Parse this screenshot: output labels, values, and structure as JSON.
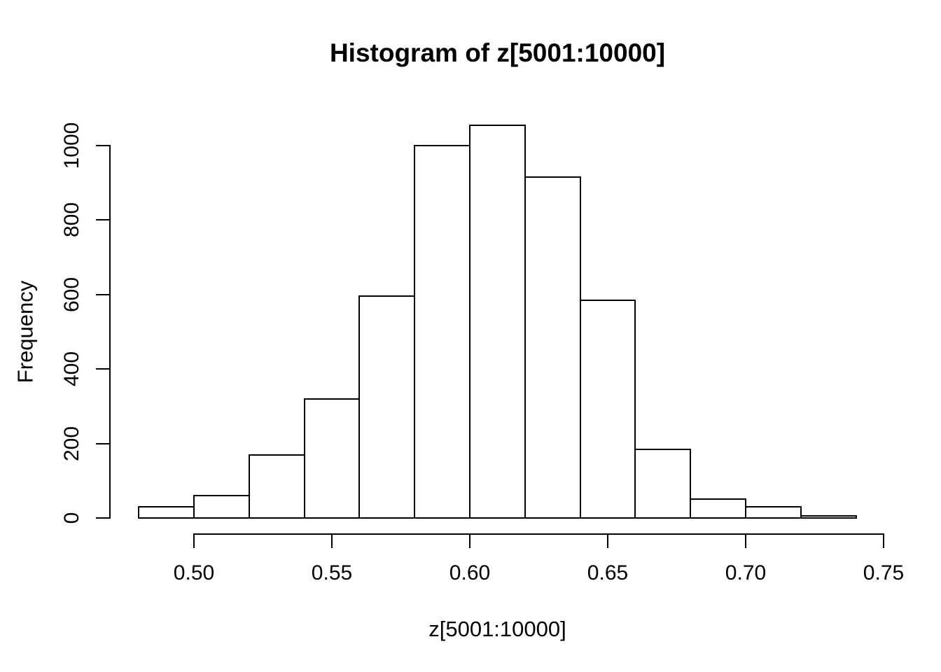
{
  "figure": {
    "background": "#ffffff",
    "foreground": "#000000"
  },
  "chart_data": {
    "type": "histogram",
    "title": "Histogram of z[5001:10000]",
    "xlabel": "z[5001:10000]",
    "ylabel": "Frequency",
    "bin_start": 0.48,
    "bin_width": 0.02,
    "bin_edges": [
      0.48,
      0.5,
      0.52,
      0.54,
      0.56,
      0.58,
      0.6,
      0.62,
      0.64,
      0.66,
      0.68,
      0.7,
      0.72,
      0.74
    ],
    "counts": [
      30,
      60,
      170,
      320,
      595,
      1000,
      1055,
      915,
      585,
      185,
      50,
      30,
      5
    ],
    "x_ticks": [
      0.5,
      0.55,
      0.6,
      0.65,
      0.7,
      0.75
    ],
    "x_tick_labels": [
      "0.50",
      "0.55",
      "0.60",
      "0.65",
      "0.70",
      "0.75"
    ],
    "y_ticks": [
      0,
      200,
      400,
      600,
      800,
      1000
    ],
    "y_tick_labels": [
      "0",
      "200",
      "400",
      "600",
      "800",
      "1000"
    ],
    "xlim": [
      0.5,
      0.75
    ],
    "ylim": [
      0,
      1000
    ],
    "grid": false,
    "legend": false,
    "bar_fill": "#ffffff",
    "bar_border": "#000000",
    "axis_color": "#000000",
    "text_color": "#000000"
  }
}
